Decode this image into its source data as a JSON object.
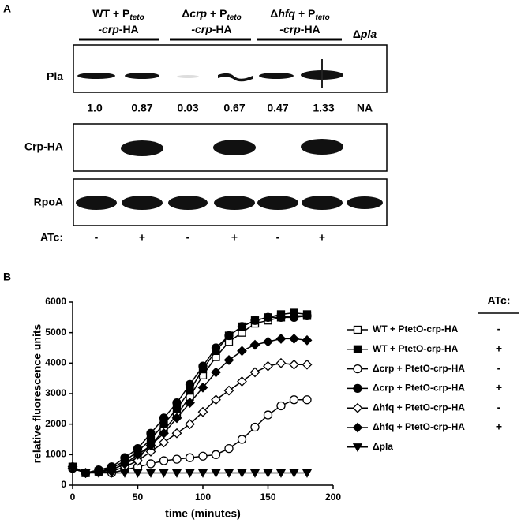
{
  "panel_labels": [
    "A",
    "B"
  ],
  "panel_a": {
    "groups": [
      {
        "l1": [
          "WT + P",
          "teto"
        ],
        "l2": [
          "-crp",
          "-HA"
        ]
      },
      {
        "l1": [
          "Δ",
          "crp",
          " + P",
          "teto"
        ],
        "l2": [
          "-crp",
          "-HA"
        ]
      },
      {
        "l1": [
          "Δ",
          "hfq",
          " + P",
          "teto"
        ],
        "l2": [
          "-crp",
          "-HA"
        ]
      }
    ],
    "pla_label": [
      "Δ",
      "pla"
    ],
    "rows": [
      "Pla",
      "Crp-HA",
      "RpoA"
    ],
    "quant": [
      "1.0",
      "0.87",
      "0.03",
      "0.67",
      "0.47",
      "1.33",
      "NA"
    ],
    "atc_label": "ATc:",
    "atc": [
      "-",
      "+",
      "-",
      "+",
      "-",
      "+"
    ]
  },
  "chart_data": {
    "type": "line",
    "ylabel": "relative fluorescence units",
    "xlabel": "time (minutes)",
    "x": [
      0,
      10,
      20,
      30,
      40,
      50,
      60,
      70,
      80,
      90,
      100,
      110,
      120,
      130,
      140,
      150,
      160,
      170,
      180
    ],
    "xlim": [
      0,
      200
    ],
    "xticks": [
      0,
      50,
      100,
      150,
      200
    ],
    "ylim": [
      0,
      6000
    ],
    "yticks": [
      0,
      1000,
      2000,
      3000,
      4000,
      5000,
      6000
    ],
    "legend": "right",
    "legend_title": "ATc:",
    "legend_signs": [
      "-",
      "+",
      "-",
      "+",
      "-",
      "+"
    ],
    "series": [
      {
        "name": "WT + PtetO-crp-HA",
        "color": "#000000",
        "marker": "square-open",
        "values": [
          600,
          400,
          450,
          500,
          700,
          900,
          1300,
          1800,
          2300,
          2900,
          3600,
          4200,
          4700,
          5000,
          5300,
          5400,
          5500,
          5550,
          5550
        ]
      },
      {
        "name": "WT + PtetO-crp-HA",
        "color": "#000000",
        "marker": "square",
        "values": [
          600,
          400,
          450,
          550,
          800,
          1100,
          1500,
          2000,
          2500,
          3100,
          3800,
          4400,
          4900,
          5200,
          5400,
          5500,
          5600,
          5650,
          5600
        ]
      },
      {
        "name": "Δcrp + PtetO-crp-HA",
        "color": "#000000",
        "marker": "circle-open",
        "values": [
          550,
          400,
          420,
          400,
          500,
          600,
          700,
          800,
          850,
          900,
          950,
          1000,
          1200,
          1500,
          1900,
          2300,
          2600,
          2800,
          2800
        ]
      },
      {
        "name": "Δcrp + PtetO-crp-HA",
        "color": "#000000",
        "marker": "circle",
        "values": [
          600,
          400,
          500,
          600,
          900,
          1200,
          1700,
          2200,
          2700,
          3300,
          3900,
          4500,
          4900,
          5200,
          5400,
          5500,
          5500,
          5500,
          5550
        ]
      },
      {
        "name": "Δhfq + PtetO-crp-HA",
        "color": "#000000",
        "marker": "diamond-open",
        "values": [
          550,
          400,
          420,
          450,
          600,
          800,
          1100,
          1400,
          1700,
          2000,
          2400,
          2800,
          3100,
          3400,
          3700,
          3900,
          4000,
          3950,
          3950
        ]
      },
      {
        "name": "Δhfq + PtetO-crp-HA",
        "color": "#000000",
        "marker": "diamond",
        "values": [
          600,
          400,
          450,
          500,
          700,
          1000,
          1300,
          1700,
          2200,
          2700,
          3200,
          3700,
          4100,
          4400,
          4600,
          4700,
          4800,
          4800,
          4750
        ]
      },
      {
        "name": "Δpla",
        "color": "#000000",
        "marker": "triangle-down",
        "values": [
          550,
          400,
          400,
          400,
          400,
          400,
          400,
          400,
          400,
          400,
          400,
          400,
          400,
          400,
          400,
          400,
          400,
          400,
          400
        ]
      }
    ]
  }
}
